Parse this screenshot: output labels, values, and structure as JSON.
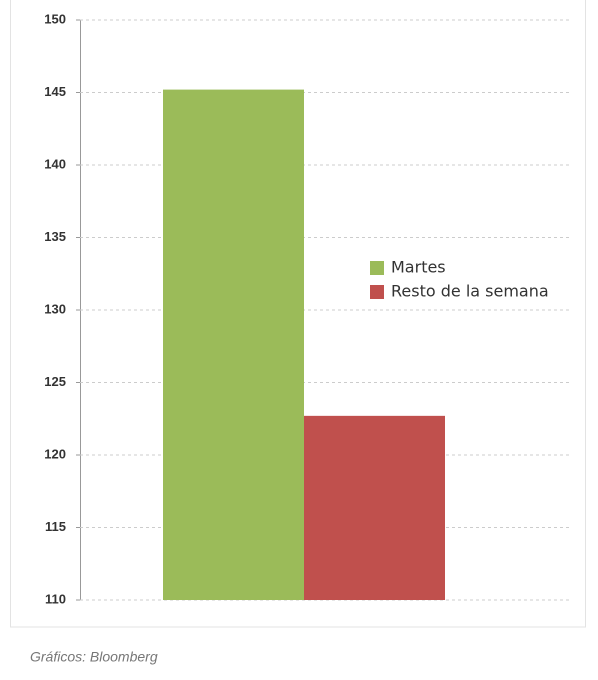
{
  "chart_data": {
    "type": "bar",
    "categories": [
      null
    ],
    "series": [
      {
        "name": "Martes",
        "color": "#9bbb59",
        "values": [
          145.2
        ]
      },
      {
        "name": "Resto de la semana",
        "color": "#c0504d",
        "values": [
          122.7
        ]
      }
    ],
    "ylim": [
      110,
      150
    ],
    "yticks": [
      110,
      115,
      120,
      125,
      130,
      135,
      140,
      145,
      150
    ],
    "grid": true,
    "source": "Gráficos: Bloomberg"
  }
}
